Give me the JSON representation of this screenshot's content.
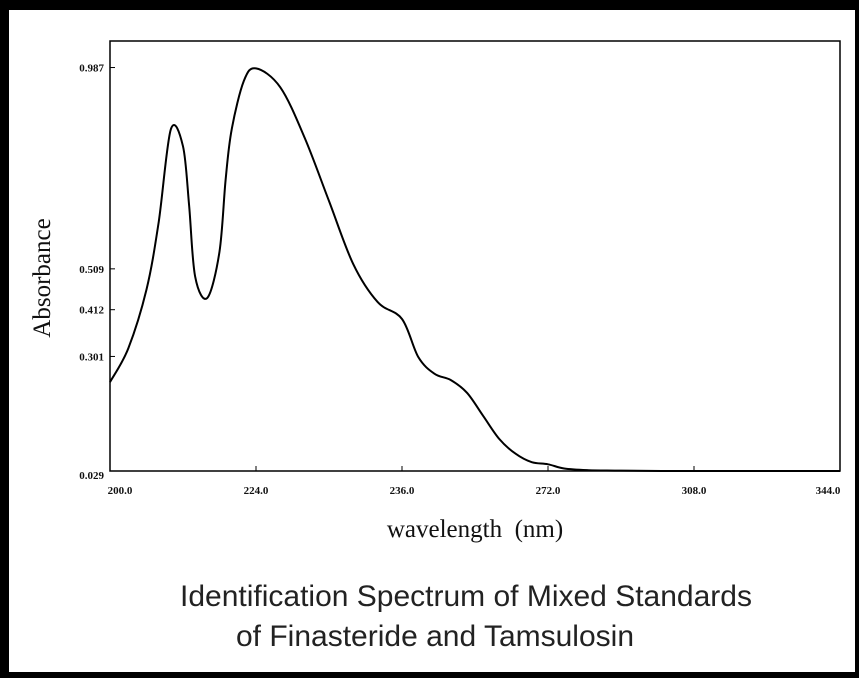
{
  "chart_data": {
    "type": "line",
    "title": "Identification Spectrum of Mixed Standards",
    "subtitle": "of Finasteride and Tamsulosin",
    "xlabel": "wavelength  (nm)",
    "ylabel": "Absorbance",
    "x_tick_labels": [
      "200.0",
      "224.0",
      "236.0",
      "272.0",
      "308.0",
      "344.0"
    ],
    "y_ticks": [
      {
        "value": 0.987,
        "label": "0.987"
      },
      {
        "value": 0.509,
        "label": "0.509"
      },
      {
        "value": 0.412,
        "label": "0.412"
      },
      {
        "value": 0.301,
        "label": "0.301"
      },
      {
        "value": 0.029,
        "label": "0.029"
      }
    ],
    "ylim": [
      0.029,
      1.05
    ],
    "grid": false,
    "legend": "none",
    "line_color": "#000000",
    "series": [
      {
        "x": [
          200,
          203,
          206,
          208,
          210,
          212,
          213,
          214,
          216,
          218,
          219,
          220,
          222,
          224,
          226,
          228,
          230,
          232,
          234,
          236,
          240,
          244,
          248,
          252,
          256,
          260,
          264,
          268,
          272,
          276,
          282,
          290,
          300,
          310,
          320,
          330,
          344
        ],
        "y": [
          0.24,
          0.32,
          0.46,
          0.62,
          0.84,
          0.8,
          0.66,
          0.49,
          0.44,
          0.55,
          0.72,
          0.84,
          0.955,
          0.985,
          0.94,
          0.82,
          0.67,
          0.52,
          0.43,
          0.39,
          0.3,
          0.26,
          0.245,
          0.215,
          0.16,
          0.105,
          0.07,
          0.05,
          0.045,
          0.035,
          0.031,
          0.03,
          0.029,
          0.029,
          0.029,
          0.029,
          0.029
        ]
      }
    ]
  }
}
